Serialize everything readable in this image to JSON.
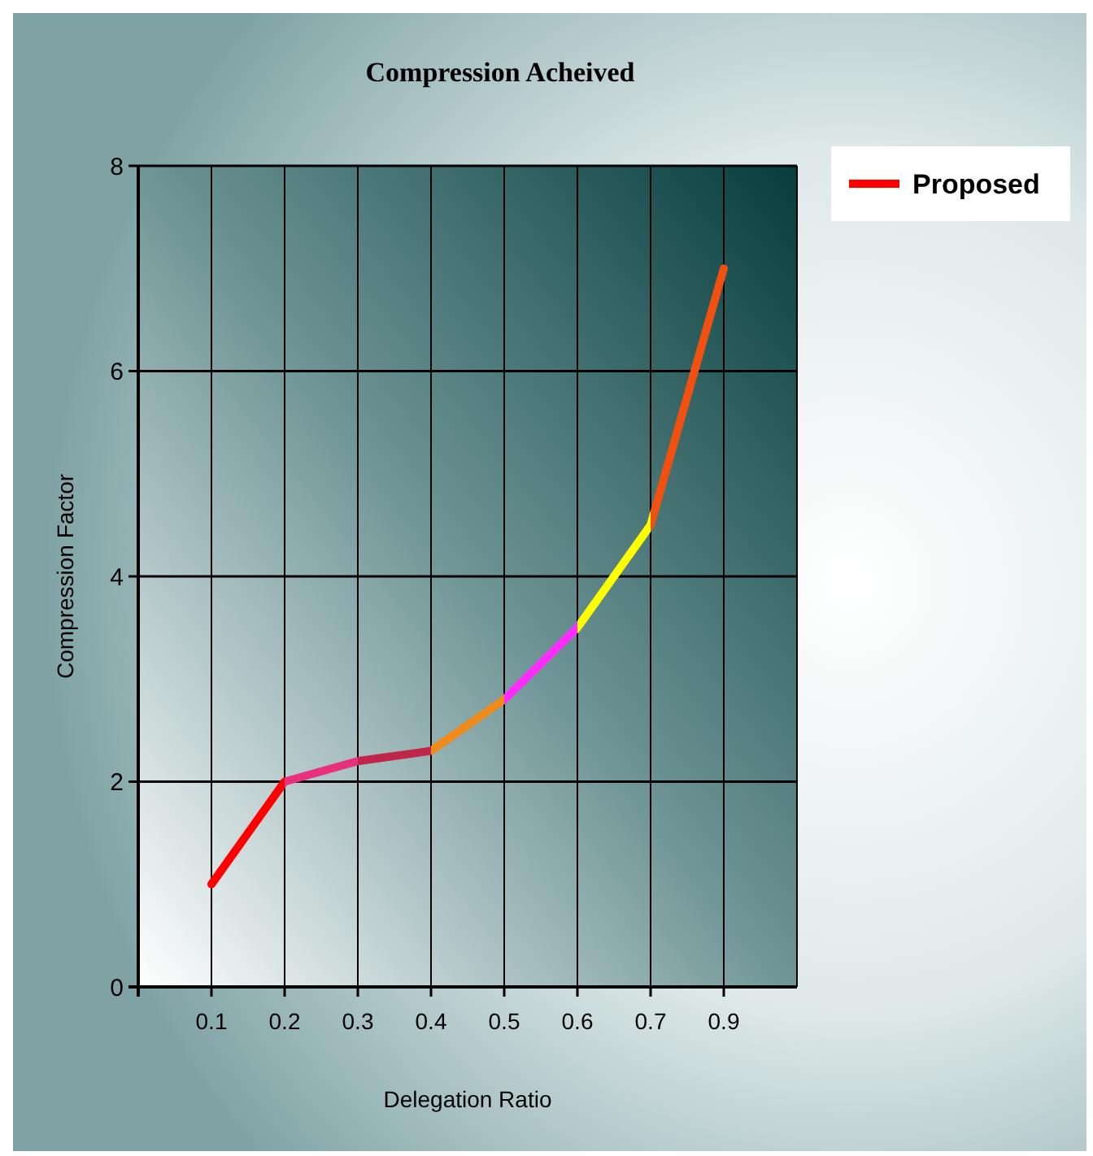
{
  "chart_data": {
    "type": "line",
    "title": "Compression Acheived",
    "xlabel": "Delegation Ratio",
    "ylabel": "Compression Factor",
    "categories": [
      "0.1",
      "0.2",
      "0.3",
      "0.4",
      "0.5",
      "0.6",
      "0.7",
      "0.9"
    ],
    "series": [
      {
        "name": "Proposed",
        "color": "#ff0000",
        "colors": [
          "#ff0000",
          "#ff0000",
          "#e8307e",
          "#c0264a",
          "#f08a1a",
          "#ff2cff",
          "#ffff00",
          "#f05010"
        ],
        "values": [
          1,
          2,
          2.2,
          2.3,
          2.8,
          3.5,
          4.5,
          7
        ]
      }
    ],
    "ylim": [
      0,
      8
    ],
    "yticks": [
      0,
      2,
      4,
      6,
      8
    ],
    "grid": true,
    "legend": "top right",
    "marker": "none",
    "line_style": "solid"
  }
}
